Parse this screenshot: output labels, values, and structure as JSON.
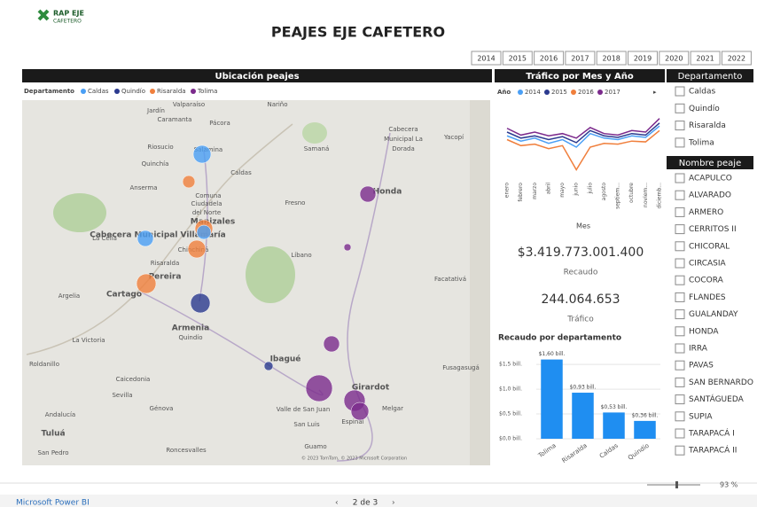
{
  "header": {
    "logo_top": "RAP EJE",
    "logo_bottom": "CAFETERO",
    "title": "PEAJES EJE CAFETERO"
  },
  "year_slicer": [
    "2014",
    "2015",
    "2016",
    "2017",
    "2018",
    "2019",
    "2020",
    "2021",
    "2022"
  ],
  "map": {
    "title": "Ubicación peajes",
    "legend_title": "Departamento",
    "legend": [
      {
        "name": "Caldas",
        "color": "#4a9ff5"
      },
      {
        "name": "Quindío",
        "color": "#2b3a8f"
      },
      {
        "name": "Risaralda",
        "color": "#f07f3c"
      },
      {
        "name": "Tolima",
        "color": "#7b2a8c"
      }
    ],
    "places": [
      "Valparaíso",
      "Jardín",
      "Caramanta",
      "Pácora",
      "Nariño",
      "Riosucio",
      "Salamina",
      "Quinchía",
      "Caldas",
      "Anserma",
      "Comuna",
      "Ciudadela",
      "del Norte",
      "Manizales",
      "Samaná",
      "Cabecera",
      "Municipal La",
      "Dorada",
      "Yacopí",
      "Honda",
      "Fresno",
      "La Celia",
      "Cabecera Municipal Villamaría",
      "Chinchiná",
      "Risaralda",
      "Pereira",
      "Líbano",
      "Facatativá",
      "Argelia",
      "Cartago",
      "Armenia",
      "Quindío",
      "La Victoria",
      "Ibagué",
      "Roldanillo",
      "Caicedonia",
      "Sevilla",
      "Girardot",
      "Fusagasugá",
      "Andalucía",
      "Génova",
      "Valle de San Juan",
      "Melgar",
      "Tuluá",
      "San Luis",
      "Espinal",
      "San Pedro",
      "Roncesvalles",
      "Guamo"
    ],
    "attribution": "© 2023 TomTom, © 2023 Microsoft Corporation"
  },
  "chart_data": [
    {
      "type": "line",
      "title": "Tráfico por Mes y Año",
      "legend_title": "Año",
      "x_label": "Mes",
      "categories": [
        "enero",
        "febrero",
        "marzo",
        "abril",
        "mayo",
        "junio",
        "julio",
        "agosto",
        "septiem...",
        "octubre",
        "noviem...",
        "diciemb..."
      ],
      "ylim": [
        0,
        100
      ],
      "series": [
        {
          "name": "2014",
          "color": "#4a9ff5",
          "values": [
            55,
            48,
            52,
            45,
            50,
            40,
            58,
            52,
            50,
            55,
            53,
            68
          ]
        },
        {
          "name": "2015",
          "color": "#2b3a8f",
          "values": [
            60,
            52,
            55,
            50,
            54,
            46,
            62,
            55,
            53,
            58,
            56,
            72
          ]
        },
        {
          "name": "2016",
          "color": "#f07f3c",
          "values": [
            50,
            42,
            44,
            38,
            42,
            10,
            40,
            45,
            44,
            48,
            47,
            62
          ]
        },
        {
          "name": "2017",
          "color": "#7b2a8c",
          "values": [
            65,
            56,
            60,
            55,
            58,
            52,
            66,
            58,
            56,
            62,
            60,
            78
          ]
        }
      ]
    },
    {
      "type": "bar",
      "title": "Recaudo por departamento",
      "categories": [
        "Tolima",
        "Risaralda",
        "Caldas",
        "Quindío"
      ],
      "values": [
        1.6,
        0.93,
        0.53,
        0.36
      ],
      "value_labels": [
        "$1,60 bill.",
        "$0,93 bill.",
        "$0,53 bill.",
        "$0,36 bill."
      ],
      "color": "#1f8ef1",
      "ylim": [
        0,
        1.7
      ],
      "yticks": [
        {
          "value": 0,
          "label": "$0,0 bill."
        },
        {
          "value": 0.5,
          "label": "$0,5 bill."
        },
        {
          "value": 1,
          "label": "$1,0 bill."
        },
        {
          "value": 1.5,
          "label": "$1,5 bill."
        }
      ]
    }
  ],
  "kpis": [
    {
      "value": "$3.419.773.001.400",
      "label": "Recaudo"
    },
    {
      "value": "244.064.653",
      "label": "Tráfico"
    }
  ],
  "slicers": {
    "departamento": {
      "title": "Departamento",
      "items": [
        "Caldas",
        "Quindío",
        "Risaralda",
        "Tolima"
      ]
    },
    "nombre_peaje": {
      "title": "Nombre peaje",
      "items": [
        "ACAPULCO",
        "ALVARADO",
        "ARMERO",
        "CERRITOS II",
        "CHICORAL",
        "CIRCASIA",
        "COCORA",
        "FLANDES",
        "GUALANDAY",
        "HONDA",
        "IRRA",
        "PAVAS",
        "SAN BERNARDO",
        "SANTÁGUEDA",
        "SUPIA",
        "TARAPACÁ I",
        "TARAPACÁ II"
      ]
    }
  },
  "footer": {
    "brand": "Microsoft Power BI",
    "pager": "2 de 3",
    "zoom": "93 %"
  }
}
